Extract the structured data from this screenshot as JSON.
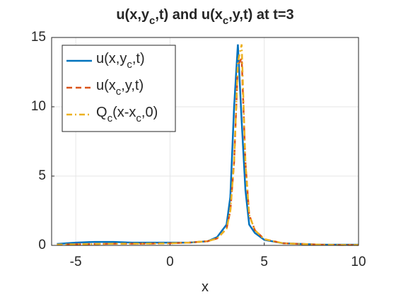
{
  "chart_data": {
    "type": "line",
    "title": "u(x,y_c,t) and u(x_c,y,t) at t=3",
    "xlabel": "x",
    "x": [
      -6,
      -5,
      -4,
      -3,
      -2,
      -1,
      0,
      1,
      2,
      2.5,
      3,
      3.2,
      3.4,
      3.6,
      3.8,
      4,
      4.2,
      4.5,
      5,
      6,
      7,
      8,
      9,
      10
    ],
    "series": [
      {
        "name": "u(x,y_c,t)",
        "color": "#0072BD",
        "dash": "solid",
        "values": [
          0.1,
          0.2,
          0.25,
          0.25,
          0.2,
          0.2,
          0.2,
          0.2,
          0.3,
          0.6,
          1.5,
          3.5,
          10,
          14.5,
          9,
          4,
          1.5,
          0.9,
          0.4,
          0.15,
          0.1,
          0.05,
          0.05,
          0.05
        ]
      },
      {
        "name": "u(x_c,y,t)",
        "color": "#D95319",
        "dash": "dashed",
        "values": [
          0.05,
          0.08,
          0.1,
          0.12,
          0.12,
          0.13,
          0.15,
          0.2,
          0.3,
          0.5,
          1.2,
          2.5,
          6,
          13,
          13.5,
          6,
          2.2,
          1.1,
          0.45,
          0.15,
          0.1,
          0.05,
          0.03,
          0.03
        ]
      },
      {
        "name": "Q_c(x-x_c,0)",
        "color": "#EDB120",
        "dash": "dashdot",
        "values": [
          0.05,
          0.08,
          0.1,
          0.12,
          0.12,
          0.13,
          0.15,
          0.2,
          0.3,
          0.5,
          1.2,
          2.5,
          6,
          13.2,
          14.5,
          6,
          2.2,
          1.1,
          0.45,
          0.15,
          0.1,
          0.05,
          0.03,
          0.03
        ]
      }
    ],
    "xlim": [
      -6.28,
      10
    ],
    "xticks": [
      -5,
      0,
      5,
      10
    ],
    "ylim": [
      0,
      15
    ],
    "yticks": [
      0,
      5,
      10,
      15
    ],
    "grid": true,
    "legend": "upper-left"
  }
}
